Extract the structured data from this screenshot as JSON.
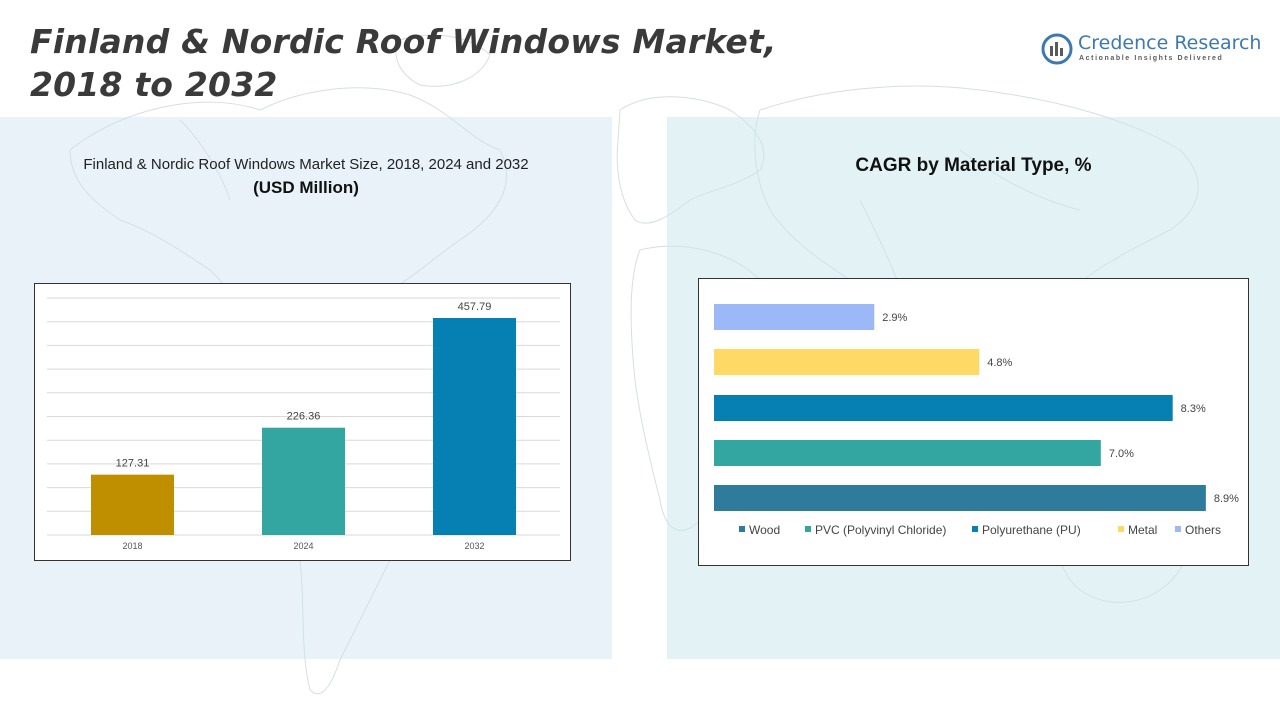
{
  "page": {
    "title_line1": "Finland & Nordic Roof Windows Market,",
    "title_line2": "2018 to 2032"
  },
  "logo": {
    "name": "Credence Research",
    "tagline": "Actionable Insights Delivered",
    "icon": "credence-logo-icon"
  },
  "colors": {
    "left_panel_bg": "#dcebf3",
    "right_panel_bg": "#d6eef0",
    "title_text": "#3a3a3a",
    "logo_blue": "#3d79b0"
  },
  "chart_data": [
    {
      "type": "bar",
      "title": "Finland & Nordic Roof Windows Market Size, 2018, 2024 and 2032",
      "subtitle": "(USD Million)",
      "categories": [
        "2018",
        "2024",
        "2032"
      ],
      "values": [
        127.31,
        226.36,
        457.79
      ],
      "data_labels": [
        "127.31",
        "226.36",
        "457.79"
      ],
      "colors": [
        "#bf8f00",
        "#33a6a1",
        "#0680b3"
      ],
      "ylim": [
        0,
        500
      ],
      "grid": true,
      "xlabel": "",
      "ylabel": ""
    },
    {
      "type": "bar",
      "orientation": "horizontal",
      "title": "CAGR by Material Type, %",
      "categories": [
        "Wood",
        "PVC (Polyvinyl Chloride)",
        "Polyurethane (PU)",
        "Metal",
        "Others"
      ],
      "values": [
        8.9,
        7.0,
        8.3,
        4.8,
        2.9
      ],
      "data_labels": [
        "8.9%",
        "7.0%",
        "8.3%",
        "4.8%",
        "2.9%"
      ],
      "colors": [
        "#2e7b9c",
        "#33a6a1",
        "#0680b3",
        "#ffd966",
        "#9db8f7"
      ],
      "xlim": [
        0,
        9.5
      ],
      "legend": "bottom",
      "grid": false
    }
  ]
}
